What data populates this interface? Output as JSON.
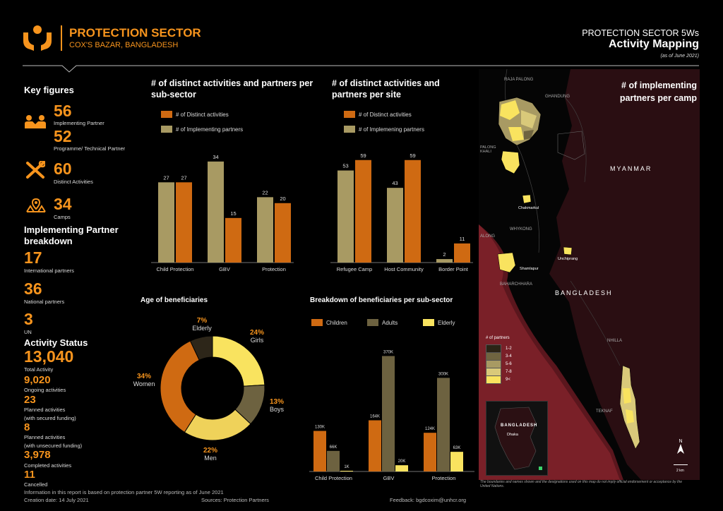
{
  "header": {
    "title": "PROTECTION SECTOR",
    "subtitle": "COX'S BAZAR, BANGLADESH",
    "report_name": "PROTECTION SECTOR 5Ws",
    "report_title": "Activity Mapping",
    "as_of": "(as of June 2021)",
    "logo_icon": "protection-hands-icon"
  },
  "key_figures": {
    "heading": "Key figures",
    "implementing_partner": {
      "value": "56",
      "label": "Implementing Partner"
    },
    "programme_partner": {
      "value": "52",
      "label": "Programme/ Technical Partner"
    },
    "activities": {
      "value": "60",
      "label": "Distinct Activities"
    },
    "camps": {
      "value": "34",
      "label": "Camps"
    },
    "ip_breakdown_heading": "Implementing Partner breakdown",
    "international": {
      "value": "17",
      "label": "International partners"
    },
    "national": {
      "value": "36",
      "label": "National partners"
    },
    "un": {
      "value": "3",
      "label": "UN"
    },
    "status_heading": "Activity Status",
    "total": {
      "value": "13,040",
      "label": "Total Activity"
    },
    "ongoing": {
      "value": "9,020",
      "label": "Ongoing activities"
    },
    "planned_secured": {
      "value": "23",
      "label1": "Planned activities",
      "label2": "(with secured funding)"
    },
    "planned_unsecured": {
      "value": "8",
      "label1": "Planned activities",
      "label2": "(with unsecured funding)"
    },
    "completed": {
      "value": "3,978",
      "label": "Completed activities"
    },
    "cancelled": {
      "value": "11",
      "label": "Cancelled"
    }
  },
  "colors": {
    "orange": "#cf6a12",
    "olive": "#a89a63",
    "dark_olive": "#6d6240",
    "yellow": "#f9e35f"
  },
  "chart_data": [
    {
      "type": "bar",
      "title": "# of distinct activities and partners per sub-sector",
      "categories": [
        "Child Protection",
        "GBV",
        "Protection"
      ],
      "series": [
        {
          "name": "# of Distinct activities",
          "values": [
            27,
            15,
            20
          ]
        },
        {
          "name": "# of Implementing partners",
          "values": [
            27,
            34,
            22
          ]
        }
      ]
    },
    {
      "type": "bar",
      "title": "# of distinct activities and partners per site",
      "categories": [
        "Refugee Camp",
        "Host Community",
        "Border Point"
      ],
      "series": [
        {
          "name": "# of Distinct activities",
          "values": [
            59,
            59,
            11
          ]
        },
        {
          "name": "# of Implemening partners",
          "values": [
            53,
            43,
            2
          ]
        }
      ]
    },
    {
      "type": "pie",
      "title": "Age of beneficiaries",
      "labels": [
        "Girls",
        "Boys",
        "Men",
        "Women",
        "Elderly"
      ],
      "values": [
        24,
        13,
        22,
        34,
        7
      ],
      "value_labels": [
        "24%",
        "13%",
        "22%",
        "34%",
        "7%"
      ]
    },
    {
      "type": "bar",
      "title": "Breakdown of beneficiaries per sub-sector",
      "categories": [
        "Child Protection",
        "GBV",
        "Protection"
      ],
      "series": [
        {
          "name": "Children",
          "values": [
            130,
            164,
            124
          ],
          "labels": [
            "130K",
            "164K",
            "124K"
          ]
        },
        {
          "name": "Adults",
          "values": [
            66,
            370,
            300
          ],
          "labels": [
            "66K",
            "370K",
            "300K"
          ]
        },
        {
          "name": "Elderly",
          "values": [
            1,
            20,
            63
          ],
          "labels": [
            "1K",
            "20K",
            "63K"
          ]
        }
      ]
    }
  ],
  "map": {
    "title": "# of implementing partners per camp",
    "labels": {
      "raja_palong": "RAJA PALONG",
      "ghandung": "GHANDUNG",
      "palong_khali": "PALONG KHALI",
      "myanmar": "MYANMAR",
      "chakmarkul": "Chakmarkul",
      "whykong": "WHYKONG",
      "jalong": "ALONG",
      "shamlapur": "Shamlapur",
      "unchiprang": "Unchiprang",
      "baharchhara": "BAHARCHHARA",
      "bangladesh": "BANGLADESH",
      "nhilla": "NHILLA",
      "teknaf": "TEKNAF",
      "inset_country": "BANGLADESH",
      "inset_city": "Dhaka",
      "scale": "2 km",
      "north": "N"
    },
    "legend_title": "# of partners",
    "legend": [
      "1-2",
      "3-4",
      "5-6",
      "7-8",
      "9<"
    ],
    "legend_colors": [
      "#2b2416",
      "#6f6440",
      "#a89a63",
      "#d9c97a",
      "#f9e35f"
    ],
    "disclaimer": "The boundaries and names shown and the designations used on this map do not imply official endorsement or acceptance by the United Nations."
  },
  "footer": {
    "info": "Information in this report is based on protection partner 5W reporting as of June 2021",
    "creation": "Creation date: 14 July 2021",
    "sources": "Sources: Protection Partners",
    "feedback": "Feedback: bgdcoxim@unhcr.org"
  }
}
